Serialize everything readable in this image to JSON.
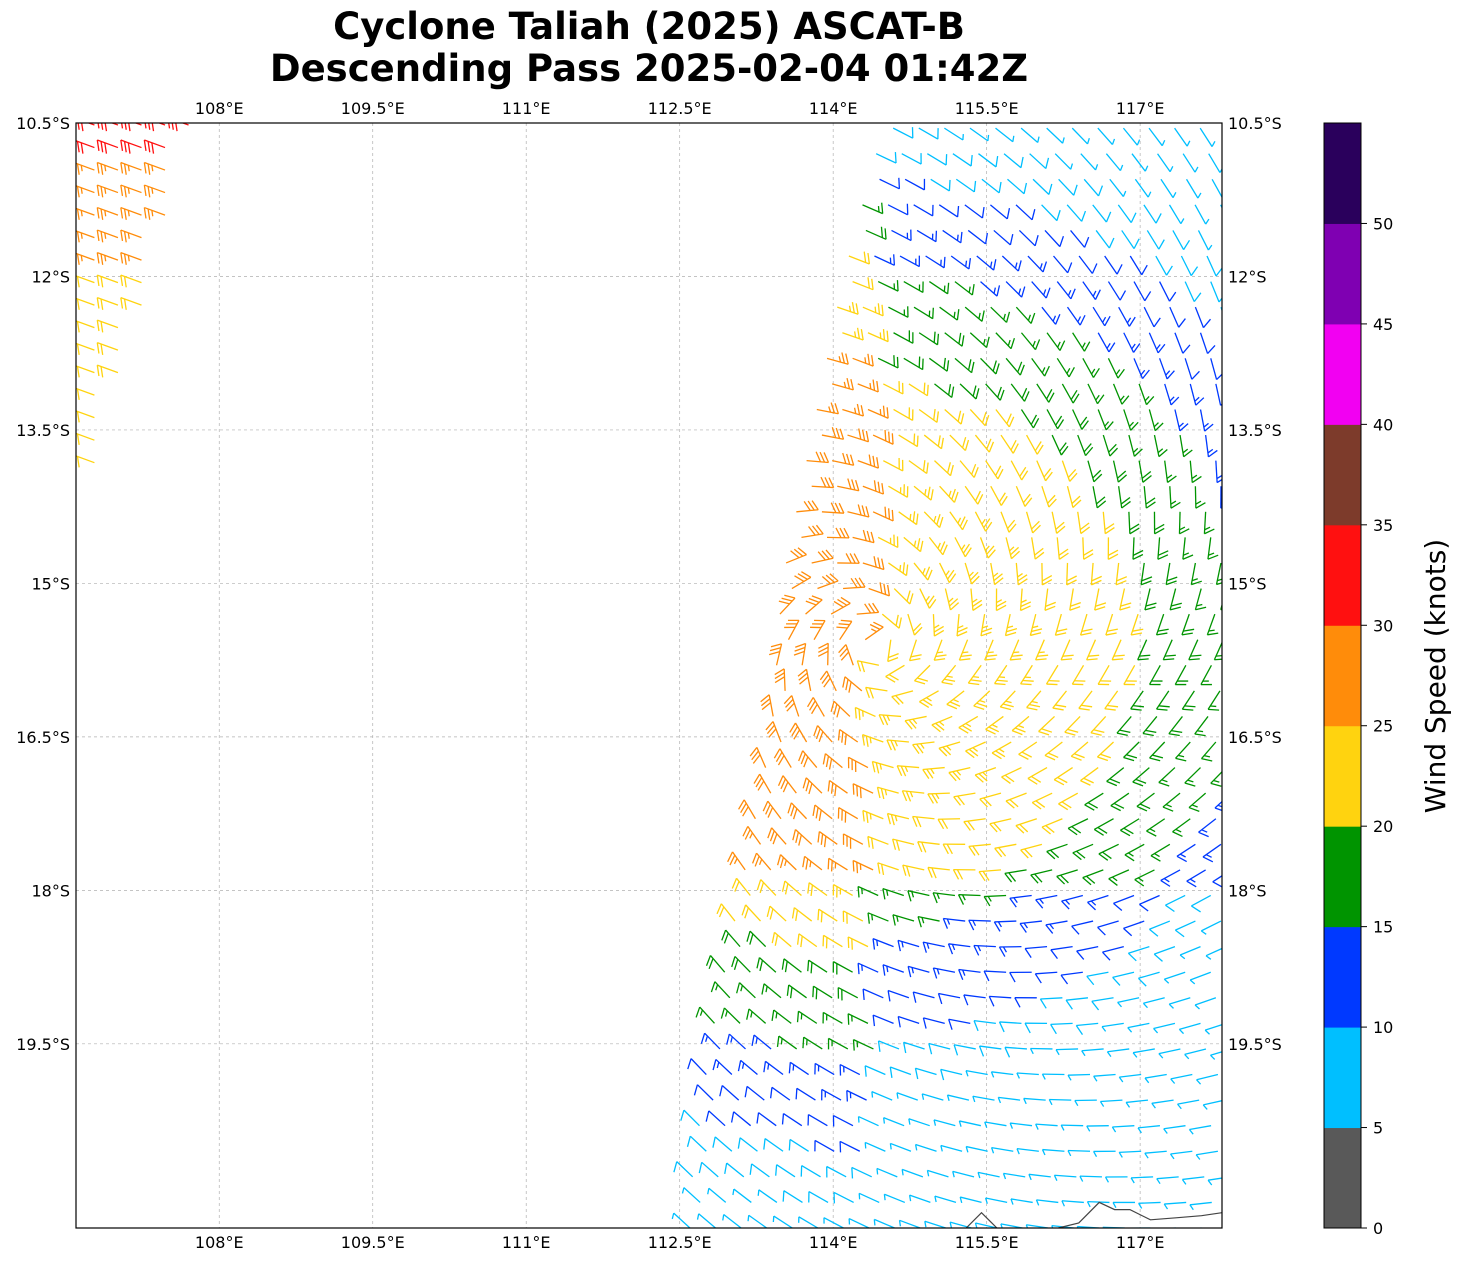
{
  "title": {
    "line1": "Cyclone Taliah (2025) ASCAT-B",
    "line2": "Descending Pass 2025-02-04 01:42Z"
  },
  "map": {
    "lon_range": [
      106.6,
      117.8
    ],
    "lat_range": [
      -21.3,
      -10.5
    ],
    "lon_ticks": [
      {
        "value": 108.0,
        "label": "108°E"
      },
      {
        "value": 109.5,
        "label": "109.5°E"
      },
      {
        "value": 111.0,
        "label": "111°E"
      },
      {
        "value": 112.5,
        "label": "112.5°E"
      },
      {
        "value": 114.0,
        "label": "114°E"
      },
      {
        "value": 115.5,
        "label": "115.5°E"
      },
      {
        "value": 117.0,
        "label": "117°E"
      }
    ],
    "lat_ticks": [
      {
        "value": -10.5,
        "label": "10.5°S"
      },
      {
        "value": -12.0,
        "label": "12°S"
      },
      {
        "value": -13.5,
        "label": "13.5°S"
      },
      {
        "value": -15.0,
        "label": "15°S"
      },
      {
        "value": -16.5,
        "label": "16.5°S"
      },
      {
        "value": -18.0,
        "label": "18°S"
      },
      {
        "value": -19.5,
        "label": "19.5°S"
      }
    ],
    "gridlines": true,
    "grid_color": "#b0b0b0"
  },
  "colorbar": {
    "label": "Wind Speed (knots)",
    "range": [
      0,
      55
    ],
    "ticks": [
      {
        "value": 0,
        "label": "0"
      },
      {
        "value": 5,
        "label": "5"
      },
      {
        "value": 10,
        "label": "10"
      },
      {
        "value": 15,
        "label": "15"
      },
      {
        "value": 20,
        "label": "20"
      },
      {
        "value": 25,
        "label": "25"
      },
      {
        "value": 30,
        "label": "30"
      },
      {
        "value": 35,
        "label": "35"
      },
      {
        "value": 40,
        "label": "40"
      },
      {
        "value": 45,
        "label": "45"
      },
      {
        "value": 50,
        "label": "50"
      }
    ],
    "bins": [
      {
        "from": 0,
        "to": 5,
        "color": "#595959"
      },
      {
        "from": 5,
        "to": 10,
        "color": "#00bfff"
      },
      {
        "from": 10,
        "to": 15,
        "color": "#0039ff"
      },
      {
        "from": 15,
        "to": 20,
        "color": "#009400"
      },
      {
        "from": 20,
        "to": 25,
        "color": "#ffd30f"
      },
      {
        "from": 25,
        "to": 30,
        "color": "#ff8c0a"
      },
      {
        "from": 30,
        "to": 35,
        "color": "#ff1010"
      },
      {
        "from": 35,
        "to": 40,
        "color": "#7d3b2b"
      },
      {
        "from": 40,
        "to": 45,
        "color": "#f200f2"
      },
      {
        "from": 45,
        "to": 50,
        "color": "#7f00b2"
      },
      {
        "from": 50,
        "to": 55,
        "color": "#2a005c"
      }
    ]
  },
  "wind_field": {
    "cyclone_center": {
      "lon": 114.4,
      "lat": -15.6
    },
    "west_swath_lon_range": [
      106.6,
      107.8
    ],
    "east_swath_west_edge": [
      {
        "lat": -10.5,
        "lon": 114.5
      },
      {
        "lat": -12.0,
        "lon": 114.1
      },
      {
        "lat": -13.5,
        "lon": 113.8
      },
      {
        "lat": -15.0,
        "lon": 113.5
      },
      {
        "lat": -16.5,
        "lon": 113.4
      },
      {
        "lat": -18.0,
        "lon": 113.1
      },
      {
        "lat": -19.5,
        "lon": 112.8
      },
      {
        "lat": -21.0,
        "lon": 112.6
      }
    ]
  },
  "coastline": [
    {
      "lon": 115.3,
      "lat": -21.3
    },
    {
      "lon": 115.45,
      "lat": -21.15
    },
    {
      "lon": 115.55,
      "lat": -21.25
    },
    {
      "lon": 115.6,
      "lat": -21.3
    }
  ],
  "coastline2": [
    {
      "lon": 116.2,
      "lat": -21.3
    },
    {
      "lon": 116.4,
      "lat": -21.25
    },
    {
      "lon": 116.6,
      "lat": -21.05
    },
    {
      "lon": 116.75,
      "lat": -21.12
    },
    {
      "lon": 116.9,
      "lat": -21.12
    },
    {
      "lon": 117.1,
      "lat": -21.22
    },
    {
      "lon": 117.35,
      "lat": -21.2
    },
    {
      "lon": 117.6,
      "lat": -21.18
    },
    {
      "lon": 117.8,
      "lat": -21.15
    }
  ]
}
